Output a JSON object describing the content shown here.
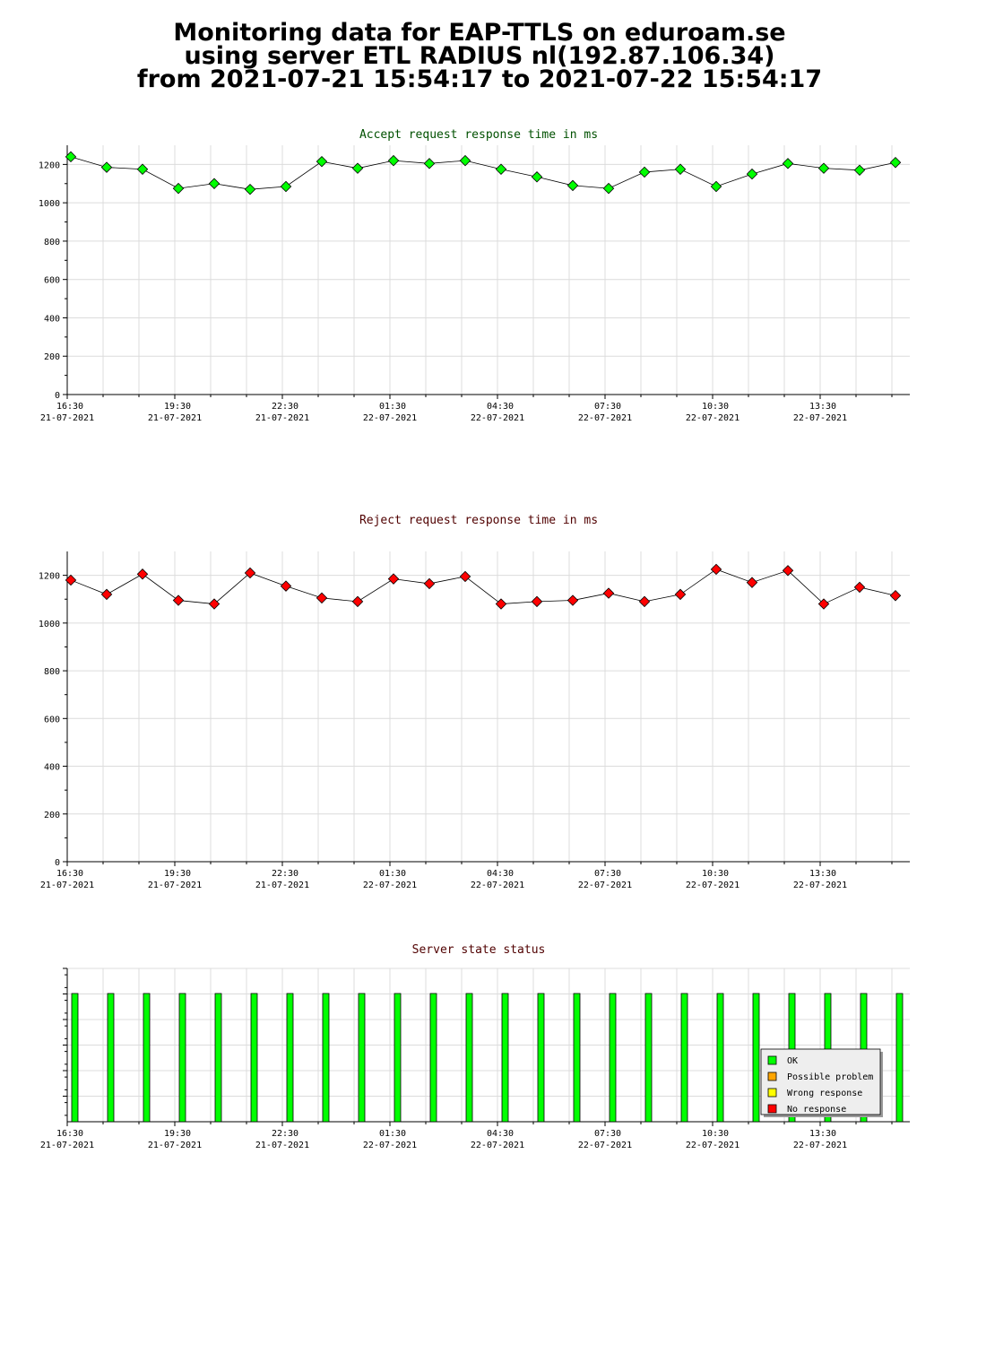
{
  "header": {
    "line1": "Monitoring data for EAP-TTLS on eduroam.se",
    "line2": "using server ETL RADIUS nl(192.87.106.34)",
    "line3": "from 2021-07-21 15:54:17 to 2021-07-22 15:54:17"
  },
  "colors": {
    "accept": "#00ff00",
    "accept_title": "#005000",
    "reject": "#ff0000",
    "reject_title": "#500000",
    "ok": "#00ff00",
    "possible_problem": "#ffa500",
    "wrong_response": "#ffff00",
    "no_response": "#ff0000"
  },
  "x_ticks": [
    {
      "time": "16:30",
      "date": "21-07-2021"
    },
    {
      "time": "19:30",
      "date": "21-07-2021"
    },
    {
      "time": "22:30",
      "date": "21-07-2021"
    },
    {
      "time": "01:30",
      "date": "22-07-2021"
    },
    {
      "time": "04:30",
      "date": "22-07-2021"
    },
    {
      "time": "07:30",
      "date": "22-07-2021"
    },
    {
      "time": "10:30",
      "date": "22-07-2021"
    },
    {
      "time": "13:30",
      "date": "22-07-2021"
    }
  ],
  "chart_data": [
    {
      "type": "line",
      "title": "Accept request response time in ms",
      "xlabel": "",
      "ylabel": "",
      "ylim": [
        0,
        1300
      ],
      "yticks": [
        0,
        200,
        400,
        600,
        800,
        1000,
        1200
      ],
      "x": [
        "16:30",
        "17:30",
        "18:30",
        "19:30",
        "20:30",
        "21:30",
        "22:30",
        "23:30",
        "00:30",
        "01:30",
        "02:30",
        "03:30",
        "04:30",
        "05:30",
        "06:30",
        "07:30",
        "08:30",
        "09:30",
        "10:30",
        "11:30",
        "12:30",
        "13:30",
        "14:30",
        "15:30"
      ],
      "values": [
        1240,
        1185,
        1175,
        1075,
        1100,
        1070,
        1085,
        1215,
        1180,
        1220,
        1205,
        1220,
        1175,
        1135,
        1090,
        1075,
        1160,
        1175,
        1085,
        1150,
        1205,
        1180,
        1170,
        1210
      ],
      "grid": true
    },
    {
      "type": "line",
      "title": "Reject request response time in ms",
      "xlabel": "",
      "ylabel": "",
      "ylim": [
        0,
        1300
      ],
      "yticks": [
        0,
        200,
        400,
        600,
        800,
        1000,
        1200
      ],
      "x": [
        "16:30",
        "17:30",
        "18:30",
        "19:30",
        "20:30",
        "21:30",
        "22:30",
        "23:30",
        "00:30",
        "01:30",
        "02:30",
        "03:30",
        "04:30",
        "05:30",
        "06:30",
        "07:30",
        "08:30",
        "09:30",
        "10:30",
        "11:30",
        "12:30",
        "13:30",
        "14:30",
        "15:30"
      ],
      "values": [
        1180,
        1120,
        1205,
        1095,
        1080,
        1210,
        1155,
        1105,
        1090,
        1185,
        1165,
        1195,
        1080,
        1090,
        1095,
        1125,
        1090,
        1120,
        1225,
        1170,
        1220,
        1080,
        1150,
        1115
      ],
      "grid": true
    },
    {
      "type": "bar",
      "title": "Server state status",
      "xlabel": "",
      "ylabel": "",
      "x": [
        "16:30",
        "17:30",
        "18:30",
        "19:30",
        "20:30",
        "21:30",
        "22:30",
        "23:30",
        "00:30",
        "01:30",
        "02:30",
        "03:30",
        "04:30",
        "05:30",
        "06:30",
        "07:30",
        "08:30",
        "09:30",
        "10:30",
        "11:30",
        "12:30",
        "13:30",
        "14:30",
        "15:30"
      ],
      "states": [
        "OK",
        "OK",
        "OK",
        "OK",
        "OK",
        "OK",
        "OK",
        "OK",
        "OK",
        "OK",
        "OK",
        "OK",
        "OK",
        "OK",
        "OK",
        "OK",
        "OK",
        "OK",
        "OK",
        "OK",
        "OK",
        "OK",
        "OK",
        "OK"
      ],
      "legend": [
        "OK",
        "Possible problem",
        "Wrong response",
        "No response"
      ],
      "legend_position": "bottom-right",
      "grid": true
    }
  ]
}
